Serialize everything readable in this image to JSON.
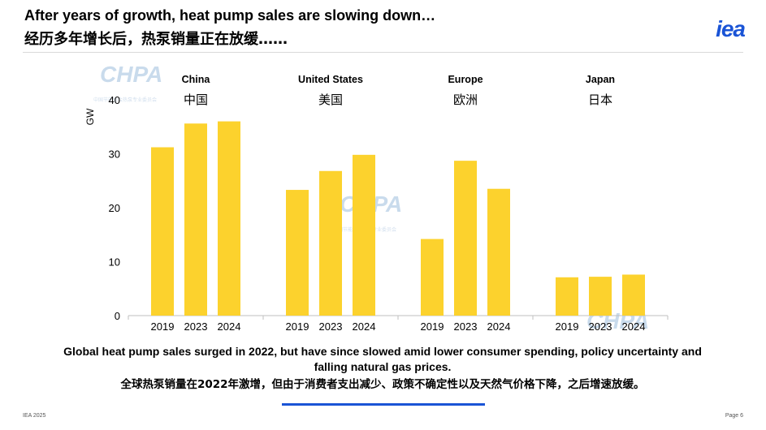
{
  "header": {
    "title_en": "After years of growth, heat pump sales are slowing down…",
    "title_zh": "经历多年增长后，热泵销量正在放缓……",
    "logo_text": "iea"
  },
  "watermark": {
    "text": "CHPA",
    "subtext": "中国节能协会热泵专业委员会"
  },
  "chart_data": {
    "type": "bar",
    "ylabel": "GW",
    "ylim": [
      0,
      40
    ],
    "yticks": [
      0,
      10,
      20,
      30,
      40
    ],
    "bar_color": "#fcd22d",
    "groups": [
      {
        "name_en": "China",
        "name_zh": "中国",
        "categories": [
          "2019",
          "2023",
          "2024"
        ],
        "values": [
          31.2,
          35.6,
          36.0
        ]
      },
      {
        "name_en": "United States",
        "name_zh": "美国",
        "categories": [
          "2019",
          "2023",
          "2024"
        ],
        "values": [
          23.3,
          26.8,
          29.8
        ]
      },
      {
        "name_en": "Europe",
        "name_zh": "欧洲",
        "categories": [
          "2019",
          "2023",
          "2024"
        ],
        "values": [
          14.2,
          28.7,
          23.5
        ]
      },
      {
        "name_en": "Japan",
        "name_zh": "日本",
        "categories": [
          "2019",
          "2023",
          "2024"
        ],
        "values": [
          7.1,
          7.2,
          7.6
        ]
      }
    ]
  },
  "caption": {
    "en": "Global heat pump sales surged in 2022, but have since slowed amid lower consumer spending, policy uncertainty and falling natural gas prices.",
    "zh": "全球热泵销量在2022年激增，但由于消费者支出减少、政策不确定性以及天然气价格下降，之后增速放缓。"
  },
  "footer": {
    "left": "IEA 2025",
    "right": "Page 6"
  },
  "colors": {
    "accent": "#1a54d6",
    "bar": "#fcd22d"
  }
}
